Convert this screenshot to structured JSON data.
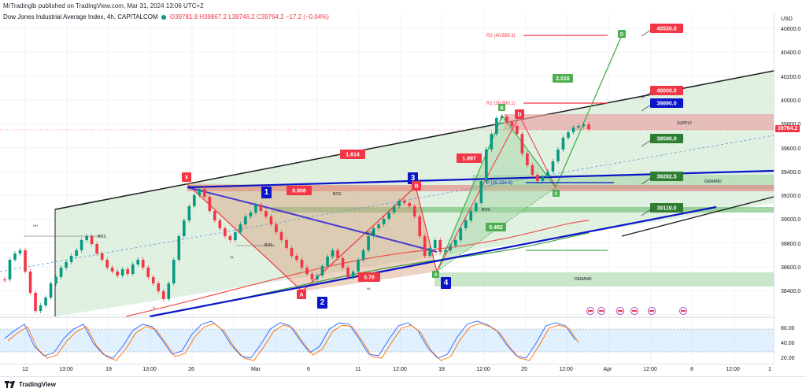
{
  "header": {
    "publisher": "MrTradinglb published on TradingView.com, Mar 31, 2024 13:06 UTC+2"
  },
  "legend": {
    "symbol": "Dow Jones Industrial Average Index, 4h, CAPITALCOM",
    "open": "O39781.9",
    "high": "H39867.2",
    "low": "L39746.2",
    "close": "C39764.2",
    "change": "−17.2 (−0.04%)"
  },
  "price_axis": {
    "currency": "USD",
    "ticks": [
      "40600.0",
      "40400.0",
      "40200.0",
      "40000.0",
      "39800.0",
      "39600.0",
      "39400.0",
      "39200.0",
      "39000.0",
      "38800.0",
      "38600.0",
      "38400.0"
    ],
    "current_price": "39764.2",
    "stoch_ticks": [
      "80.00",
      "40.00",
      "20.00"
    ]
  },
  "time_axis": {
    "ticks": [
      "12",
      "13:00",
      "19",
      "13:00",
      "26",
      "Mar",
      "6",
      "11",
      "12:00",
      "18",
      "12:00",
      "25",
      "12:00",
      "Apr",
      "12:00",
      "8",
      "12:00",
      "1"
    ]
  },
  "labels": {
    "price_tags": [
      "40520.0",
      "40000.0",
      "39890.0",
      "39590.0",
      "39282.5",
      "39110.0"
    ],
    "fib_ratios": [
      "1.614",
      "0.908",
      "0.78",
      "1.997",
      "2.016",
      "0.482"
    ],
    "wave_numbers": [
      "1",
      "2",
      "3",
      "4"
    ],
    "points": [
      "X",
      "A",
      "B",
      "C",
      "D",
      "A",
      "B",
      "C",
      "D"
    ],
    "pivots": [
      "R2 (40,559.3)",
      "R1 (39,890.1)",
      "P (39,324.5)"
    ],
    "zones": [
      "SUPPLY",
      "DEMAND",
      "DEMAND"
    ],
    "bos": [
      "BOS",
      "BOS",
      "BOS",
      "BOS",
      "BOS"
    ],
    "small": [
      "HL",
      "HL",
      "LL",
      "HH"
    ]
  },
  "footer": {
    "brand": "TradingView"
  },
  "colors": {
    "up": "#089981",
    "down": "#f23645",
    "channel_fill": "#c8e6c9",
    "supply": "#e8a1a1",
    "resist_red": "#f23645",
    "wave_blue": "#0a14c8",
    "tag_green": "#2e7d32"
  }
}
